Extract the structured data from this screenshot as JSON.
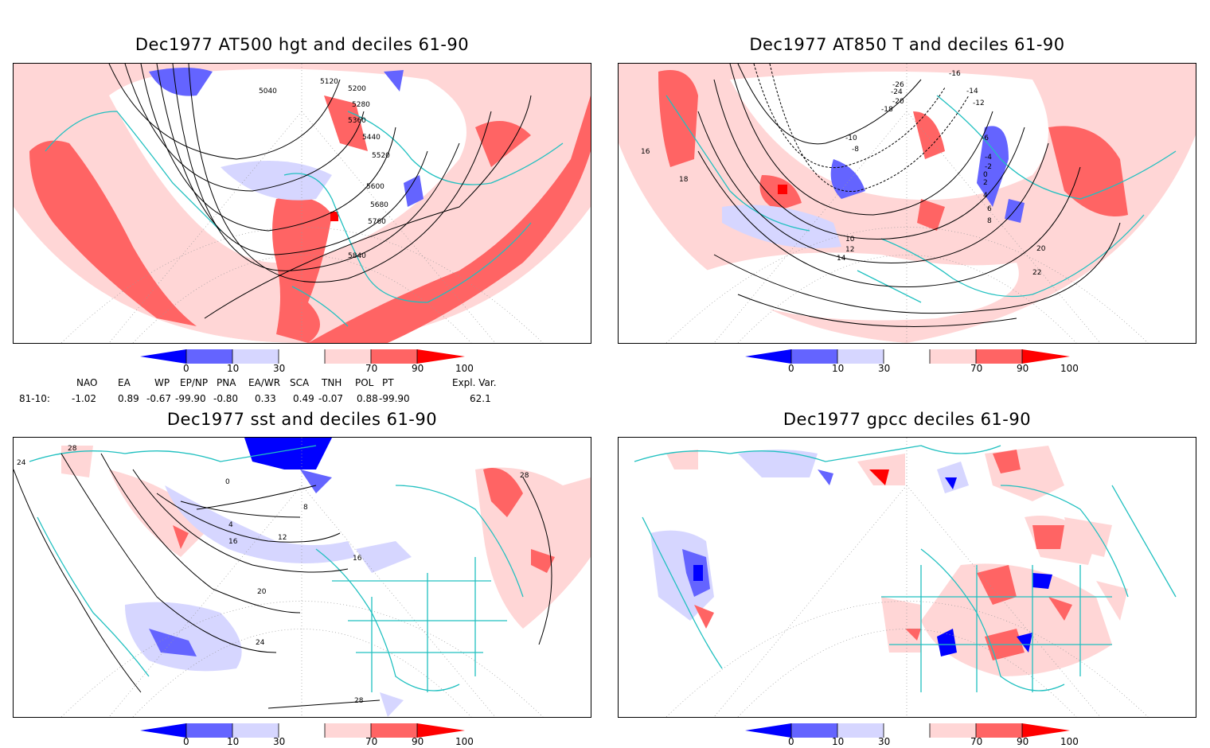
{
  "panels": [
    {
      "id": "p1",
      "title": "Dec1977 AT500 hgt and deciles 61-90",
      "contour_labels": [
        "5040",
        "5120",
        "5200",
        "5280",
        "5360",
        "5440",
        "5520",
        "5600",
        "5680",
        "5760",
        "5840"
      ]
    },
    {
      "id": "p2",
      "title": "Dec1977 AT850 T and deciles 61-90",
      "contour_labels": [
        "16",
        "18",
        "20",
        "22",
        "14",
        "12",
        "10",
        "8",
        "6",
        "4",
        "2",
        "0",
        "-2",
        "-4",
        "-6",
        "-8",
        "-10",
        "-12",
        "-14",
        "-16",
        "-18",
        "-20",
        "-24",
        "-26"
      ]
    },
    {
      "id": "p3",
      "title": "Dec1977 sst and deciles 61-90",
      "contour_labels": [
        "28",
        "24",
        "20",
        "16",
        "12",
        "8",
        "4",
        "0"
      ]
    },
    {
      "id": "p4",
      "title": "Dec1977 gpcc deciles 61-90",
      "contour_labels": []
    }
  ],
  "colorbar": {
    "ticks": [
      "0",
      "10",
      "30",
      "70",
      "90",
      "100"
    ],
    "colors": [
      "#0000ff",
      "#6464ff",
      "#d6d6ff",
      "#ffffff",
      "#ffd6d6",
      "#ff6464",
      "#ff0000"
    ]
  },
  "teleconnections": {
    "headers": [
      "NAO",
      "EA",
      "WP",
      "EP/NP",
      "PNA",
      "EA/WR",
      "SCA",
      "TNH",
      "POL",
      "PT",
      "Expl. Var."
    ],
    "row_label": "81-10:",
    "values": [
      "-1.02",
      "0.89",
      "-0.67",
      "-99.90",
      "-0.80",
      "0.33",
      "0.49",
      "-0.07",
      "0.88",
      "-99.90",
      "62.1"
    ]
  }
}
